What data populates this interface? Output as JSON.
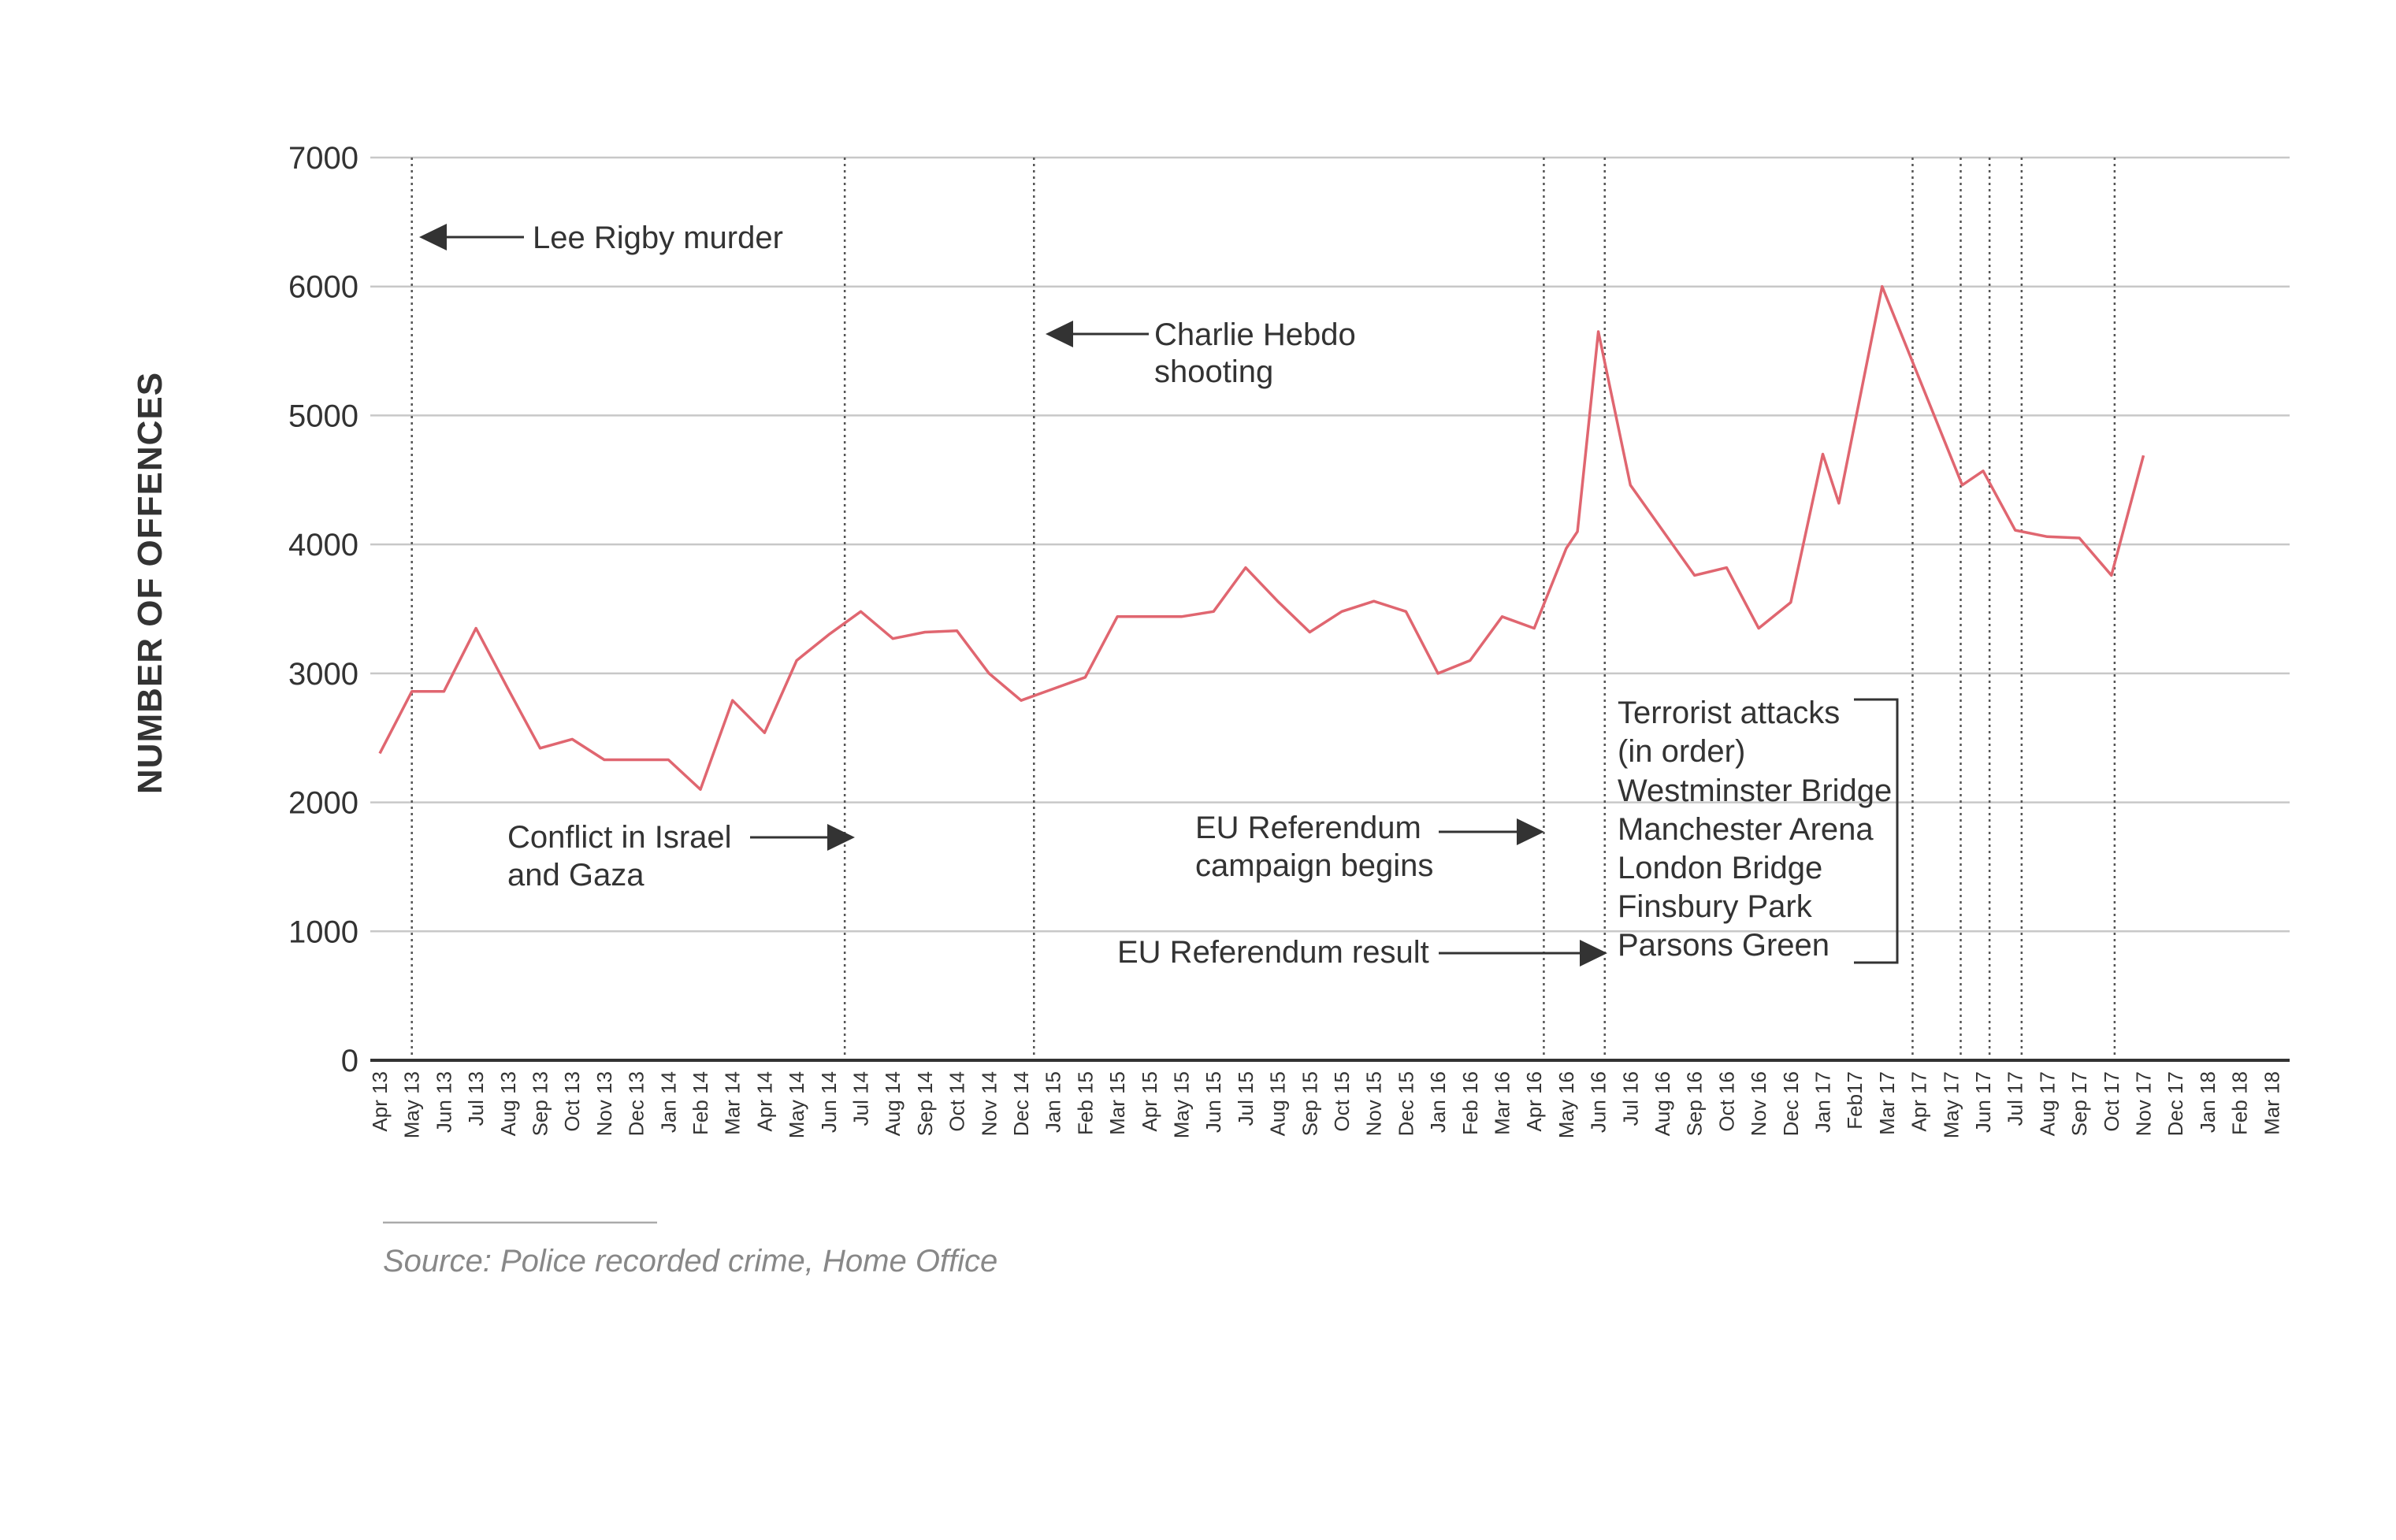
{
  "chart_data": {
    "type": "line",
    "title": "",
    "ylabel": "NUMBER OF OFFENCES",
    "xlabel": "",
    "ylim": [
      0,
      7000
    ],
    "yticks": [
      0,
      1000,
      2000,
      3000,
      4000,
      5000,
      6000,
      7000
    ],
    "ytick_labels": [
      "0",
      "1000",
      "2000",
      "3000",
      "4000",
      "5000",
      "6000",
      "7000"
    ],
    "grid": true,
    "line_color": "#e06670",
    "categories": [
      "Apr 13",
      "May 13",
      "Jun 13",
      "Jul 13",
      "Aug 13",
      "Sep 13",
      "Oct 13",
      "Nov 13",
      "Dec 13",
      "Jan 14",
      "Feb 14",
      "Mar 14",
      "Apr 14",
      "May 14",
      "Jun 14",
      "Jul 14",
      "Aug 14",
      "Sep 14",
      "Oct 14",
      "Nov 14",
      "Dec 14",
      "Jan 15",
      "Feb 15",
      "Mar 15",
      "Apr 15",
      "May 15",
      "Jun 15",
      "Jul 15",
      "Aug 15",
      "Sep 15",
      "Oct 15",
      "Nov 15",
      "Dec 15",
      "Jan 16",
      "Feb 16",
      "Mar 16",
      "Apr 16",
      "May 16",
      "Jun 16",
      "Jul 16",
      "Aug 16",
      "Sep 16",
      "Oct 16",
      "Nov 16",
      "Dec 16",
      "Jan 17",
      "Feb17",
      "Mar 17",
      "Apr 17",
      "May 17",
      "Jun 17",
      "Jul 17",
      "Aug 17",
      "Sep 17",
      "Oct 17",
      "Nov 17",
      "Dec 17",
      "Jan 18",
      "Feb 18",
      "Mar 18"
    ],
    "series": [
      {
        "name": "Offences",
        "points": [
          [
            0,
            2380
          ],
          [
            1,
            2860
          ],
          [
            2,
            2860
          ],
          [
            3,
            3350
          ],
          [
            4,
            2880
          ],
          [
            5,
            2420
          ],
          [
            6,
            2490
          ],
          [
            7,
            2330
          ],
          [
            8,
            2330
          ],
          [
            9,
            2330
          ],
          [
            10,
            2100
          ],
          [
            11,
            2790
          ],
          [
            12,
            2540
          ],
          [
            13,
            3100
          ],
          [
            14,
            3300
          ],
          [
            15,
            3480
          ],
          [
            16,
            3270
          ],
          [
            17,
            3320
          ],
          [
            18,
            3330
          ],
          [
            19,
            3000
          ],
          [
            20,
            2790
          ],
          [
            21,
            2880
          ],
          [
            22,
            2970
          ],
          [
            23,
            3440
          ],
          [
            24,
            3440
          ],
          [
            25,
            3440
          ],
          [
            26,
            3480
          ],
          [
            27,
            3820
          ],
          [
            28,
            3560
          ],
          [
            29,
            3320
          ],
          [
            30,
            3480
          ],
          [
            31,
            3560
          ],
          [
            32,
            3480
          ],
          [
            33,
            3000
          ],
          [
            34,
            3100
          ],
          [
            35,
            3440
          ],
          [
            36,
            3350
          ],
          [
            37,
            3970
          ],
          [
            37.35,
            4100
          ],
          [
            38,
            5650
          ],
          [
            39,
            4460
          ],
          [
            40,
            4110
          ],
          [
            41,
            3760
          ],
          [
            42,
            3820
          ],
          [
            43,
            3350
          ],
          [
            44,
            3550
          ],
          [
            45,
            4700
          ],
          [
            45.5,
            4320
          ],
          [
            46.85,
            6000
          ],
          [
            49.35,
            4460
          ],
          [
            50,
            4570
          ],
          [
            51,
            4110
          ],
          [
            52,
            4060
          ],
          [
            53,
            4050
          ],
          [
            54,
            3760
          ],
          [
            55,
            4690
          ]
        ]
      }
    ],
    "event_lines": [
      1,
      14.5,
      20.4,
      36.3,
      38.2,
      47.8,
      49.3,
      50.2,
      51.2,
      54.1
    ],
    "annotations": {
      "lee_rigby": "Lee Rigby murder",
      "charlie_1": "Charlie Hebdo",
      "charlie_2": "shooting",
      "israel_1": "Conflict in Israel",
      "israel_2": "and Gaza",
      "eu_campaign_1": "EU Referendum",
      "eu_campaign_2": "campaign begins",
      "eu_result": "EU Referendum result",
      "terror_title_1": "Terrorist attacks",
      "terror_title_2": "(in order)",
      "terror_items": [
        "Westminster Bridge",
        "Manchester Arena",
        "London Bridge",
        "Finsbury Park",
        "Parsons Green"
      ]
    },
    "source": "Source:  Police recorded crime, Home Office"
  }
}
